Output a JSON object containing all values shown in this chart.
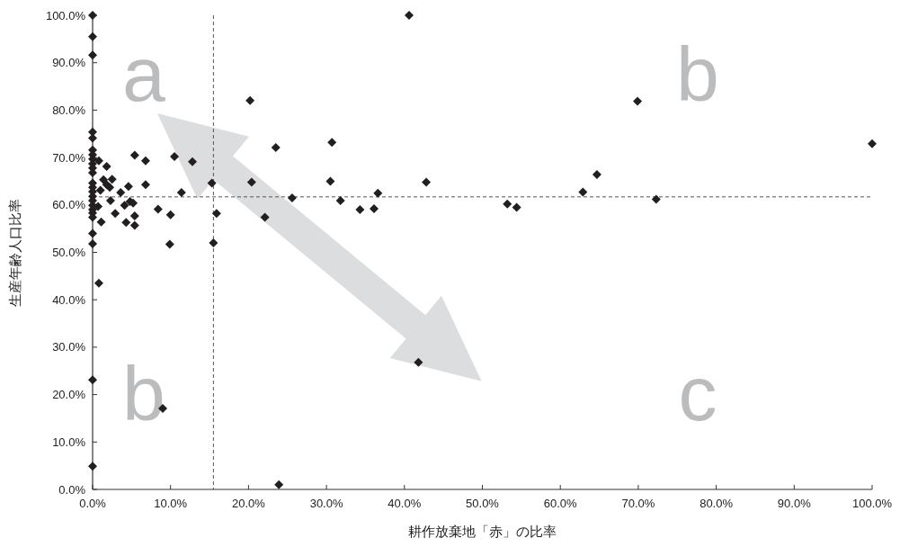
{
  "chart_data": {
    "type": "scatter",
    "xlabel": "耕作放棄地「赤」の比率",
    "ylabel": "生産年齢人口比率",
    "marker": "diamond",
    "grid": false,
    "xlim": [
      0,
      100
    ],
    "ylim": [
      0,
      100
    ],
    "xticks": [
      {
        "value": 0,
        "label": "0.0%"
      },
      {
        "value": 10,
        "label": "10.0%"
      },
      {
        "value": 20,
        "label": "20.0%"
      },
      {
        "value": 30,
        "label": "30.0%"
      },
      {
        "value": 40,
        "label": "40.0%"
      },
      {
        "value": 50,
        "label": "50.0%"
      },
      {
        "value": 60,
        "label": "60.0%"
      },
      {
        "value": 70,
        "label": "70.0%"
      },
      {
        "value": 80,
        "label": "80.0%"
      },
      {
        "value": 90,
        "label": "90.0%"
      },
      {
        "value": 100,
        "label": "100.0%"
      }
    ],
    "yticks": [
      {
        "value": 0,
        "label": "0.0%"
      },
      {
        "value": 10,
        "label": "10.0%"
      },
      {
        "value": 20,
        "label": "20.0%"
      },
      {
        "value": 30,
        "label": "30.0%"
      },
      {
        "value": 40,
        "label": "40.0%"
      },
      {
        "value": 50,
        "label": "50.0%"
      },
      {
        "value": 60,
        "label": "60.0%"
      },
      {
        "value": 70,
        "label": "70.0%"
      },
      {
        "value": 80,
        "label": "80.0%"
      },
      {
        "value": 90,
        "label": "90.0%"
      },
      {
        "value": 100,
        "label": "100.0%"
      }
    ],
    "ref_lines": [
      {
        "axis": "x",
        "value": 15.5,
        "color": "#555555",
        "line_style": "dashed"
      },
      {
        "axis": "y",
        "value": 61.7,
        "color": "#555555",
        "line_style": "dashed"
      }
    ],
    "annotations": [
      "a",
      "b",
      "b",
      "c"
    ],
    "series": [
      {
        "color": "#231f20",
        "x": [
          0,
          0,
          0,
          0,
          0,
          0,
          0,
          0,
          0,
          0,
          0,
          0,
          0,
          0,
          0,
          0,
          0,
          0,
          0,
          0,
          0,
          0,
          0,
          0,
          0.8,
          9.0,
          23.9,
          41.8,
          20.2,
          0.8,
          1.8,
          5.4,
          6.8,
          10.5,
          12.8,
          1.4,
          2.5,
          1.8,
          2.2,
          1.0,
          4.6,
          6.8,
          3.6,
          15.3,
          20.4,
          11.4,
          2.3,
          0.7,
          4.1,
          4.8,
          5.2,
          8.4,
          2.9,
          5.4,
          10.0,
          15.9,
          1.1,
          4.3,
          5.4,
          9.9,
          15.5,
          23.5,
          30.7,
          30.5,
          25.6,
          22.1,
          31.8,
          34.3,
          36.1,
          36.6,
          42.8,
          69.9,
          100.0,
          64.7,
          40.6,
          53.2,
          54.4,
          62.9,
          72.3
        ],
        "values": [
          75.4,
          74.1,
          71.6,
          70.6,
          69.7,
          68.7,
          67.8,
          66.8,
          64.6,
          63.7,
          62.8,
          61.8,
          60.9,
          59.9,
          59.0,
          58.3,
          57.4,
          54.0,
          51.8,
          100.0,
          95.5,
          91.6,
          23.1,
          4.9,
          43.5,
          17.1,
          1.0,
          26.8,
          82.0,
          69.3,
          68.1,
          70.5,
          69.3,
          70.2,
          69.1,
          65.3,
          65.4,
          64.3,
          63.7,
          63.1,
          63.9,
          64.3,
          62.6,
          64.6,
          64.8,
          62.6,
          60.9,
          59.7,
          59.9,
          60.7,
          60.4,
          59.1,
          58.2,
          57.7,
          57.9,
          58.2,
          56.4,
          56.3,
          55.7,
          51.7,
          52.0,
          72.1,
          73.2,
          65.0,
          61.5,
          57.4,
          60.9,
          59.0,
          59.2,
          62.5,
          64.8,
          81.9,
          72.9,
          66.4,
          100.0,
          60.2,
          59.5,
          62.7,
          61.2
        ]
      }
    ]
  }
}
